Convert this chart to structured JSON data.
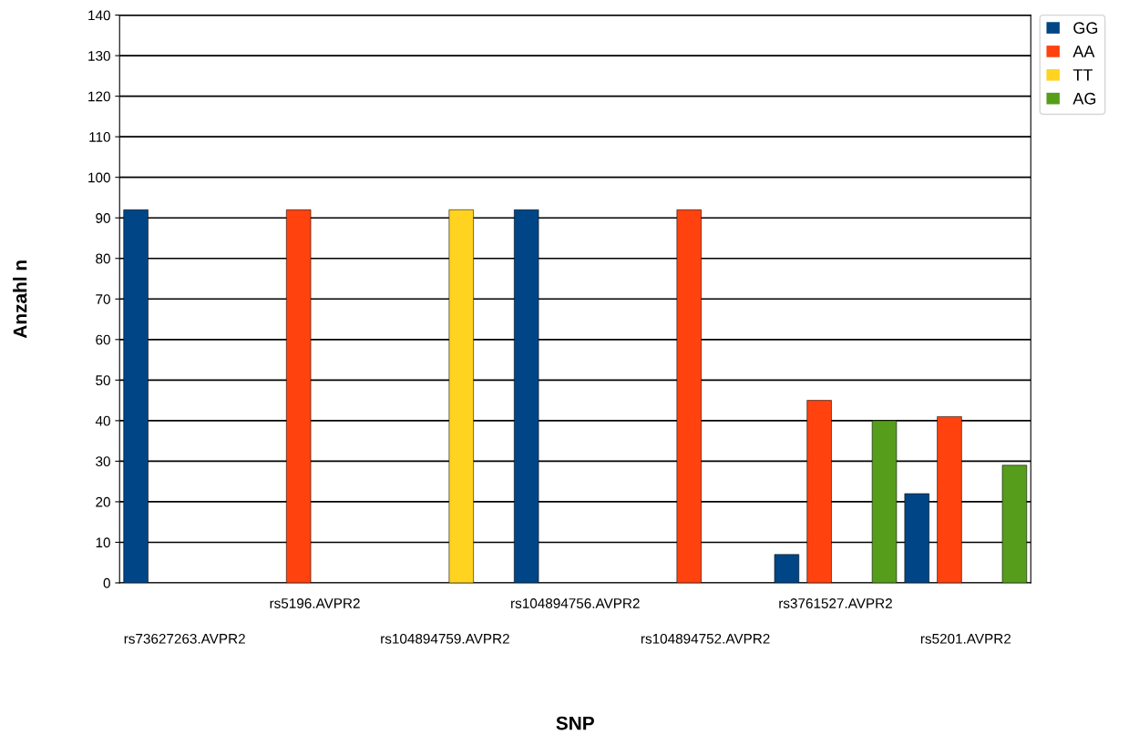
{
  "chart_data": {
    "type": "bar",
    "xlabel": "SNP",
    "ylabel": "Anzahl n",
    "categories": [
      "rs73627263.AVPR2",
      "rs5196.AVPR2",
      "rs104894759.AVPR2",
      "rs104894756.AVPR2",
      "rs104894752.AVPR2",
      "rs3761527.AVPR2",
      "rs5201.AVPR2"
    ],
    "series": [
      {
        "name": "GG",
        "color": "#004586",
        "values": [
          92,
          null,
          null,
          92,
          null,
          7,
          22
        ]
      },
      {
        "name": "AA",
        "color": "#ff420e",
        "values": [
          null,
          92,
          null,
          null,
          92,
          45,
          41
        ]
      },
      {
        "name": "TT",
        "color": "#ffd320",
        "values": [
          null,
          null,
          92,
          null,
          null,
          null,
          null
        ]
      },
      {
        "name": "AG",
        "color": "#579d1c",
        "values": [
          null,
          null,
          null,
          null,
          null,
          40,
          29
        ]
      }
    ],
    "ylim": [
      0,
      140
    ],
    "yticks": [
      0,
      10,
      20,
      30,
      40,
      50,
      60,
      70,
      80,
      90,
      100,
      110,
      120,
      130,
      140
    ],
    "grid": "y",
    "legend": "top right"
  }
}
